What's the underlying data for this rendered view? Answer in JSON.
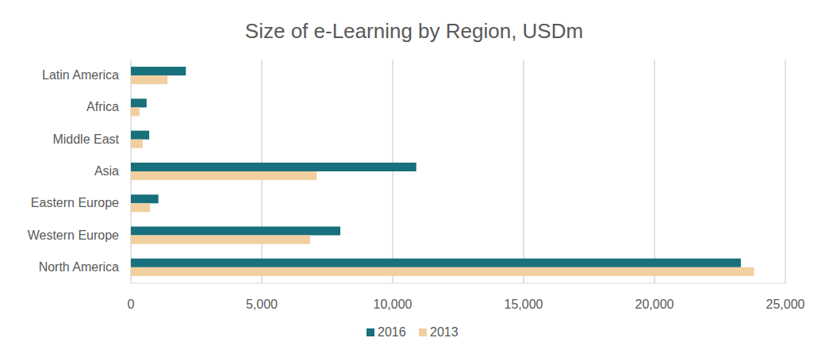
{
  "chart_data": {
    "type": "bar",
    "orientation": "horizontal",
    "title": "Size of e-Learning by Region, USDm",
    "categories": [
      "Latin America",
      "Africa",
      "Middle East",
      "Asia",
      "Eastern Europe",
      "Western Europe",
      "North America"
    ],
    "series": [
      {
        "name": "2016",
        "color": "#17707b",
        "values": [
          2100,
          600,
          700,
          10900,
          1050,
          8000,
          23300
        ]
      },
      {
        "name": "2013",
        "color": "#f2cfa1",
        "values": [
          1400,
          330,
          450,
          7100,
          730,
          6850,
          23800
        ]
      }
    ],
    "xlim": [
      0,
      25000
    ],
    "xticks": [
      0,
      {
        "value": 5000,
        "label": "5,000"
      },
      {
        "value": 10000,
        "label": "10,000"
      },
      {
        "value": 15000,
        "label": "15,000"
      },
      {
        "value": 20000,
        "label": "20,000"
      },
      {
        "value": 25000,
        "label": "25,000"
      }
    ],
    "grid": true,
    "legend": "bottom"
  }
}
